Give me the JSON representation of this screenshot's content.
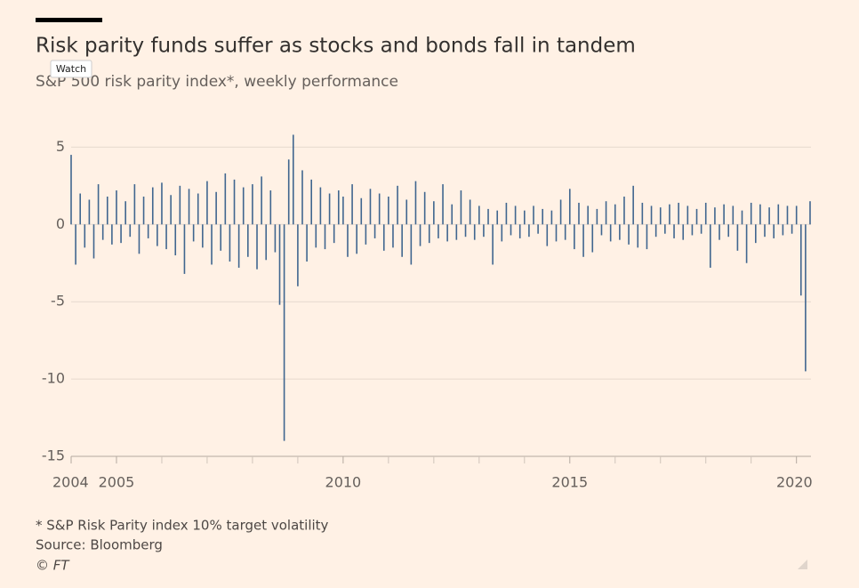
{
  "chart_data": {
    "type": "bar",
    "title": "Risk parity funds suffer as stocks and bonds fall in tandem",
    "subtitle": "S&P 500 risk parity index*, weekly performance",
    "footnote": "* S&P Risk Parity index 10% target volatility",
    "source": "Source: Bloomberg",
    "credit": "© FT",
    "color": "#40668f",
    "grid": true,
    "xlim": [
      2004,
      2020.32
    ],
    "xticks": [
      2004,
      2005,
      2010,
      2015,
      2020
    ],
    "xminorticks": [
      2006,
      2007,
      2008,
      2009,
      2011,
      2012,
      2013,
      2014,
      2016,
      2017,
      2018,
      2019
    ],
    "ylim": [
      -15,
      6
    ],
    "yticks": [
      5,
      0,
      -5,
      -10,
      -15
    ],
    "x": [
      2004.0,
      2004.1,
      2004.2,
      2004.3,
      2004.4,
      2004.5,
      2004.6,
      2004.7,
      2004.8,
      2004.9,
      2005.0,
      2005.1,
      2005.2,
      2005.3,
      2005.4,
      2005.5,
      2005.6,
      2005.7,
      2005.8,
      2005.9,
      2006.0,
      2006.1,
      2006.2,
      2006.3,
      2006.4,
      2006.5,
      2006.6,
      2006.7,
      2006.8,
      2006.9,
      2007.0,
      2007.1,
      2007.2,
      2007.3,
      2007.4,
      2007.5,
      2007.6,
      2007.7,
      2007.8,
      2007.9,
      2008.0,
      2008.1,
      2008.2,
      2008.3,
      2008.4,
      2008.5,
      2008.6,
      2008.7,
      2008.8,
      2008.9,
      2009.0,
      2009.1,
      2009.2,
      2009.3,
      2009.4,
      2009.5,
      2009.6,
      2009.7,
      2009.8,
      2009.9,
      2010.0,
      2010.1,
      2010.2,
      2010.3,
      2010.4,
      2010.5,
      2010.6,
      2010.7,
      2010.8,
      2010.9,
      2011.0,
      2011.1,
      2011.2,
      2011.3,
      2011.4,
      2011.5,
      2011.6,
      2011.7,
      2011.8,
      2011.9,
      2012.0,
      2012.1,
      2012.2,
      2012.3,
      2012.4,
      2012.5,
      2012.6,
      2012.7,
      2012.8,
      2012.9,
      2013.0,
      2013.1,
      2013.2,
      2013.3,
      2013.4,
      2013.5,
      2013.6,
      2013.7,
      2013.8,
      2013.9,
      2014.0,
      2014.1,
      2014.2,
      2014.3,
      2014.4,
      2014.5,
      2014.6,
      2014.7,
      2014.8,
      2014.9,
      2015.0,
      2015.1,
      2015.2,
      2015.3,
      2015.4,
      2015.5,
      2015.6,
      2015.7,
      2015.8,
      2015.9,
      2016.0,
      2016.1,
      2016.2,
      2016.3,
      2016.4,
      2016.5,
      2016.6,
      2016.7,
      2016.8,
      2016.9,
      2017.0,
      2017.1,
      2017.2,
      2017.3,
      2017.4,
      2017.5,
      2017.6,
      2017.7,
      2017.8,
      2017.9,
      2018.0,
      2018.1,
      2018.2,
      2018.3,
      2018.4,
      2018.5,
      2018.6,
      2018.7,
      2018.8,
      2018.9,
      2019.0,
      2019.1,
      2019.2,
      2019.3,
      2019.4,
      2019.5,
      2019.6,
      2019.7,
      2019.8,
      2019.9,
      2020.0,
      2020.1,
      2020.2,
      2020.3
    ],
    "values": [
      4.5,
      -2.6,
      2.0,
      -1.5,
      1.6,
      -2.2,
      2.6,
      -1.0,
      1.8,
      -1.3,
      2.2,
      -1.2,
      1.5,
      -0.8,
      2.6,
      -1.9,
      1.8,
      -0.9,
      2.4,
      -1.4,
      2.7,
      -1.6,
      1.9,
      -2.0,
      2.5,
      -3.2,
      2.3,
      -1.1,
      2.0,
      -1.5,
      2.8,
      -2.6,
      2.1,
      -1.7,
      3.3,
      -2.4,
      2.9,
      -2.8,
      2.4,
      -2.1,
      2.6,
      -2.9,
      3.1,
      -2.3,
      2.2,
      -1.8,
      -5.2,
      -14.0,
      4.2,
      5.8,
      -4.0,
      3.5,
      -2.4,
      2.9,
      -1.5,
      2.4,
      -1.6,
      2.0,
      -1.2,
      2.2,
      1.8,
      -2.1,
      2.6,
      -1.9,
      1.7,
      -1.3,
      2.3,
      -0.9,
      2.0,
      -1.7,
      1.8,
      -1.5,
      2.5,
      -2.1,
      1.6,
      -2.6,
      2.8,
      -1.4,
      2.1,
      -1.2,
      1.5,
      -0.9,
      2.6,
      -1.1,
      1.3,
      -1.0,
      2.2,
      -0.8,
      1.6,
      -1.0,
      1.2,
      -0.8,
      1.0,
      -2.6,
      0.9,
      -1.1,
      1.4,
      -0.7,
      1.2,
      -0.9,
      0.9,
      -0.8,
      1.2,
      -0.6,
      1.0,
      -1.4,
      0.9,
      -1.1,
      1.6,
      -1.0,
      2.3,
      -1.6,
      1.4,
      -2.1,
      1.2,
      -1.8,
      1.0,
      -0.7,
      1.5,
      -1.1,
      1.3,
      -1.0,
      1.8,
      -1.3,
      2.5,
      -1.5,
      1.4,
      -1.6,
      1.2,
      -0.8,
      1.1,
      -0.6,
      1.3,
      -0.9,
      1.4,
      -1.0,
      1.2,
      -0.7,
      1.0,
      -0.6,
      1.4,
      -2.8,
      1.1,
      -1.0,
      1.3,
      -0.8,
      1.2,
      -1.7,
      0.9,
      -2.5,
      1.4,
      -1.2,
      1.3,
      -0.8,
      1.1,
      -0.9,
      1.3,
      -0.7,
      1.2,
      -0.6,
      1.2,
      -4.6,
      -9.5,
      1.5
    ]
  },
  "ui": {
    "tooltip": "Watch"
  }
}
